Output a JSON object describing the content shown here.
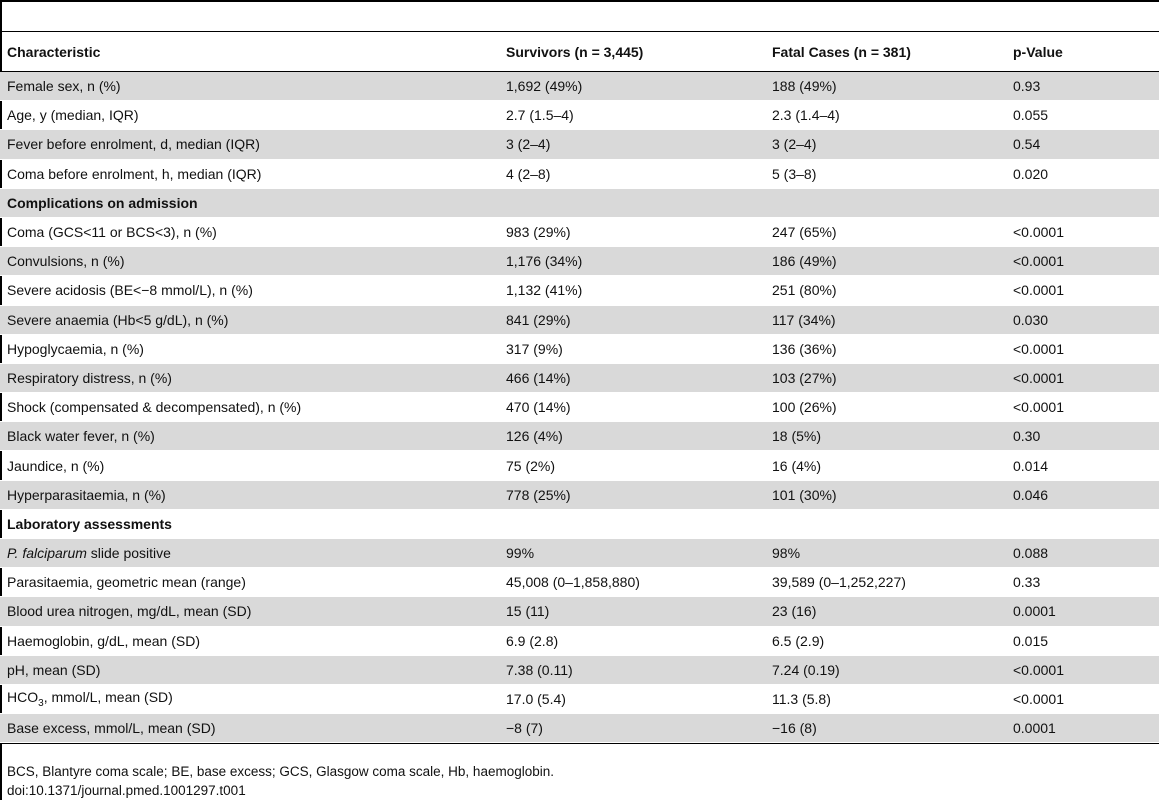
{
  "table": {
    "headers": [
      "Characteristic",
      "Survivors (n = 3,445)",
      "Fatal Cases (n = 381)",
      "p-Value"
    ],
    "rows": [
      {
        "type": "data",
        "cells": [
          "Female sex, n (%)",
          "1,692 (49%)",
          "188 (49%)",
          "0.93"
        ]
      },
      {
        "type": "data",
        "cells": [
          "Age, y (median, IQR)",
          "2.7 (1.5–4)",
          "2.3 (1.4–4)",
          "0.055"
        ]
      },
      {
        "type": "data",
        "cells": [
          "Fever before enrolment, d, median (IQR)",
          "3 (2–4)",
          "3 (2–4)",
          "0.54"
        ]
      },
      {
        "type": "data",
        "cells": [
          "Coma before enrolment, h, median (IQR)",
          "4 (2–8)",
          "5 (3–8)",
          "0.020"
        ]
      },
      {
        "type": "section",
        "cells": [
          "Complications on admission",
          "",
          "",
          ""
        ]
      },
      {
        "type": "data",
        "cells": [
          "Coma (GCS<11 or BCS<3), n (%)",
          "983 (29%)",
          "247 (65%)",
          "<0.0001"
        ]
      },
      {
        "type": "data",
        "cells": [
          "Convulsions, n (%)",
          "1,176 (34%)",
          "186 (49%)",
          "<0.0001"
        ]
      },
      {
        "type": "data",
        "cells": [
          "Severe acidosis (BE<−8 mmol/L), n (%)",
          "1,132 (41%)",
          "251 (80%)",
          "<0.0001"
        ]
      },
      {
        "type": "data",
        "cells": [
          "Severe anaemia (Hb<5 g/dL), n (%)",
          "841 (29%)",
          "117 (34%)",
          "0.030"
        ]
      },
      {
        "type": "data",
        "cells": [
          "Hypoglycaemia, n (%)",
          "317 (9%)",
          "136 (36%)",
          "<0.0001"
        ]
      },
      {
        "type": "data",
        "cells": [
          "Respiratory distress, n (%)",
          "466 (14%)",
          "103 (27%)",
          "<0.0001"
        ]
      },
      {
        "type": "data",
        "cells": [
          "Shock (compensated & decompensated), n (%)",
          "470 (14%)",
          "100 (26%)",
          "<0.0001"
        ]
      },
      {
        "type": "data",
        "cells": [
          "Black water fever, n (%)",
          "126 (4%)",
          "18 (5%)",
          "0.30"
        ]
      },
      {
        "type": "data",
        "cells": [
          "Jaundice, n (%)",
          "75 (2%)",
          "16 (4%)",
          "0.014"
        ]
      },
      {
        "type": "data",
        "cells": [
          "Hyperparasitaemia, n (%)",
          "778 (25%)",
          "101 (30%)",
          "0.046"
        ]
      },
      {
        "type": "section",
        "cells": [
          "Laboratory assessments",
          "",
          "",
          ""
        ]
      },
      {
        "type": "data",
        "cells": [
          "P. falciparum slide positive",
          "99%",
          "98%",
          "0.088"
        ]
      },
      {
        "type": "data",
        "cells": [
          "Parasitaemia, geometric mean (range)",
          "45,008 (0–1,858,880)",
          "39,589 (0–1,252,227)",
          "0.33"
        ]
      },
      {
        "type": "data",
        "cells": [
          "Blood urea nitrogen, mg/dL, mean (SD)",
          "15 (11)",
          "23 (16)",
          "0.0001"
        ]
      },
      {
        "type": "data",
        "cells": [
          "Haemoglobin, g/dL, mean (SD)",
          "6.9 (2.8)",
          "6.5 (2.9)",
          "0.015"
        ]
      },
      {
        "type": "data",
        "cells": [
          "pH, mean (SD)",
          "7.38 (0.11)",
          "7.24 (0.19)",
          "<0.0001"
        ]
      },
      {
        "type": "data",
        "cells": [
          "HCO3, mmol/L, mean (SD)",
          "17.0 (5.4)",
          "11.3 (5.8)",
          "<0.0001"
        ]
      },
      {
        "type": "data",
        "cells": [
          "Base excess, mmol/L, mean (SD)",
          "−8 (7)",
          "−16 (8)",
          "0.0001"
        ]
      }
    ]
  },
  "footnote": {
    "abbreviations": "BCS, Blantyre coma scale; BE, base excess; GCS, Glasgow coma scale, Hb, haemoglobin.",
    "doi": "doi:10.1371/journal.pmed.1001297.t001"
  }
}
